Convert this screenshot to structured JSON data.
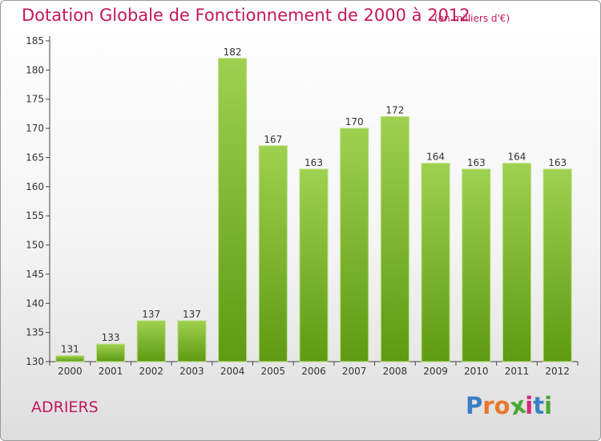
{
  "title": "Dotation Globale de Fonctionnement de 2000 à 2012",
  "subtitle": "(en milliers d'€)",
  "commune": "ADRIERS",
  "logo": {
    "letters": [
      "P",
      "r",
      "o",
      "x",
      "i",
      "t",
      "i"
    ],
    "colors": [
      "#3b7fc4",
      "#e8762c",
      "#e8762c",
      "#4aa832",
      "#d4297a",
      "#3b7fc4",
      "#4aa832"
    ]
  },
  "chart_data": {
    "type": "bar",
    "title": "Dotation Globale de Fonctionnement de 2000 à 2012",
    "subtitle": "(en milliers d'€)",
    "categories": [
      "2000",
      "2001",
      "2002",
      "2003",
      "2004",
      "2005",
      "2006",
      "2007",
      "2008",
      "2009",
      "2010",
      "2011",
      "2012"
    ],
    "values": [
      131,
      133,
      137,
      137,
      182,
      167,
      163,
      170,
      172,
      164,
      163,
      164,
      163
    ],
    "ylim": [
      130,
      185
    ],
    "yticks": [
      130,
      135,
      140,
      145,
      150,
      155,
      160,
      165,
      170,
      175,
      180,
      185
    ],
    "grid": false,
    "bar_color": "#7ab52a"
  }
}
